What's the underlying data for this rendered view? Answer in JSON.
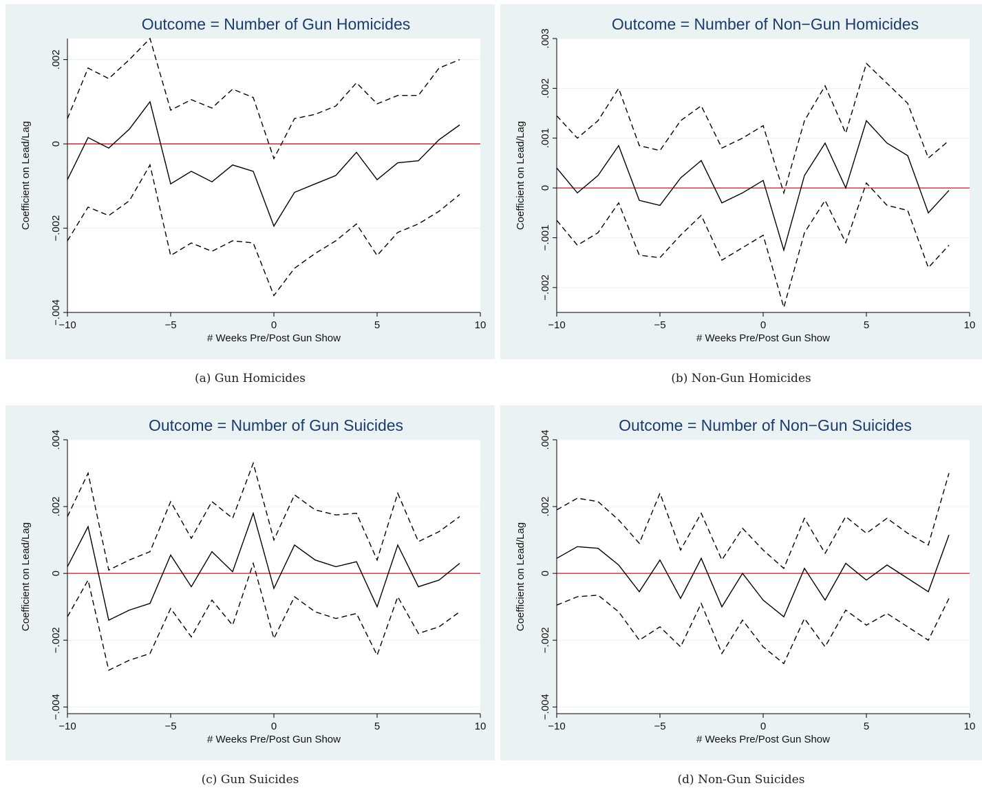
{
  "chart_data": [
    {
      "id": "a",
      "type": "line",
      "title": "Outcome = Number of Gun Homicides",
      "xlabel": "# Weeks Pre/Post Gun Show",
      "ylabel": "Coefficient on Lead/Lag",
      "caption": "(a)  Gun Homicides",
      "xlim": [
        -10,
        10
      ],
      "ylim": [
        -0.004,
        0.0025
      ],
      "xticks": [
        -10,
        -5,
        0,
        5,
        10
      ],
      "xtick_labels": [
        "−10",
        "−5",
        "0",
        "5",
        "10"
      ],
      "yticks": [
        -0.004,
        -0.002,
        0,
        0.002
      ],
      "ytick_labels": [
        "−.004",
        "−.002",
        "0",
        ".002"
      ],
      "grid": true,
      "x": [
        -10,
        -9,
        -8,
        -7,
        -6,
        -5,
        -4,
        -3,
        -2,
        -1,
        0,
        1,
        2,
        3,
        4,
        5,
        6,
        7,
        8,
        9
      ],
      "series": [
        {
          "style": "upper-ci",
          "values": [
            0.0006,
            0.0018,
            0.00155,
            0.002,
            0.0025,
            0.0008,
            0.00105,
            0.00085,
            0.0013,
            0.0011,
            -0.00035,
            0.0006,
            0.0007,
            0.0009,
            0.00145,
            0.00095,
            0.00115,
            0.00115,
            0.0018,
            0.002
          ]
        },
        {
          "style": "estimate",
          "values": [
            -0.00085,
            0.00015,
            -0.0001,
            0.00035,
            0.001,
            -0.00095,
            -0.00065,
            -0.0009,
            -0.0005,
            -0.00065,
            -0.00195,
            -0.00115,
            -0.00095,
            -0.00075,
            -0.0002,
            -0.00085,
            -0.00045,
            -0.0004,
            0.0001,
            0.00045
          ]
        },
        {
          "style": "lower-ci",
          "values": [
            -0.0023,
            -0.0015,
            -0.0017,
            -0.00135,
            -0.0005,
            -0.00265,
            -0.00235,
            -0.00255,
            -0.0023,
            -0.00235,
            -0.0036,
            -0.00295,
            -0.0026,
            -0.0023,
            -0.0019,
            -0.00265,
            -0.0021,
            -0.0019,
            -0.0016,
            -0.0012
          ]
        }
      ],
      "reference_line": 0,
      "colors": {
        "background": "#eaf2f3",
        "title": "#1a3b6b",
        "reference": "#c0142e",
        "series": "#000000",
        "grid": "#ffffff"
      }
    },
    {
      "id": "b",
      "type": "line",
      "title": "Outcome = Number of Non−Gun Homicides",
      "xlabel": "# Weeks Pre/Post Gun Show",
      "ylabel": "Coefficient on Lead/Lag",
      "caption": "(b)  Non-Gun Homicides",
      "xlim": [
        -10,
        10
      ],
      "ylim": [
        -0.0025,
        0.003
      ],
      "xticks": [
        -10,
        -5,
        0,
        5,
        10
      ],
      "xtick_labels": [
        "−10",
        "−5",
        "0",
        "5",
        "10"
      ],
      "yticks": [
        -0.002,
        -0.001,
        0,
        0.001,
        0.002,
        0.003
      ],
      "ytick_labels": [
        "−.002",
        "−.001",
        "0",
        ".001",
        ".002",
        ".003"
      ],
      "grid": true,
      "x": [
        -10,
        -9,
        -8,
        -7,
        -6,
        -5,
        -4,
        -3,
        -2,
        -1,
        0,
        1,
        2,
        3,
        4,
        5,
        6,
        7,
        8,
        9
      ],
      "series": [
        {
          "style": "upper-ci",
          "values": [
            0.00145,
            0.001,
            0.00135,
            0.002,
            0.00085,
            0.00075,
            0.00135,
            0.00165,
            0.0008,
            0.001,
            0.00125,
            -0.0001,
            0.00135,
            0.00205,
            0.0011,
            0.0025,
            0.0021,
            0.0017,
            0.0006,
            0.00095
          ]
        },
        {
          "style": "estimate",
          "values": [
            0.0004,
            -0.0001,
            0.00025,
            0.00085,
            -0.00025,
            -0.00035,
            0.0002,
            0.00055,
            -0.0003,
            -0.0001,
            0.00015,
            -0.00125,
            0.00025,
            0.0009,
            0.0,
            0.00135,
            0.0009,
            0.00065,
            -0.0005,
            -5e-05
          ]
        },
        {
          "style": "lower-ci",
          "values": [
            -0.00065,
            -0.00115,
            -0.0009,
            -0.0003,
            -0.00135,
            -0.0014,
            -0.00095,
            -0.00055,
            -0.00145,
            -0.0012,
            -0.00095,
            -0.0024,
            -0.0009,
            -0.00025,
            -0.0011,
            0.0001,
            -0.00035,
            -0.00045,
            -0.0016,
            -0.00115
          ]
        }
      ],
      "reference_line": 0,
      "colors": {
        "background": "#eaf2f3",
        "title": "#1a3b6b",
        "reference": "#c0142e",
        "series": "#000000",
        "grid": "#ffffff"
      }
    },
    {
      "id": "c",
      "type": "line",
      "title": "Outcome = Number of Gun Suicides",
      "xlabel": "# Weeks Pre/Post Gun Show",
      "ylabel": "Coefficient on Lead/Lag",
      "caption": "(c)  Gun Suicides",
      "xlim": [
        -10,
        10
      ],
      "ylim": [
        -0.0042,
        0.004
      ],
      "xticks": [
        -10,
        -5,
        0,
        5,
        10
      ],
      "xtick_labels": [
        "−10",
        "−5",
        "0",
        "5",
        "10"
      ],
      "yticks": [
        -0.004,
        -0.002,
        0,
        0.002,
        0.004
      ],
      "ytick_labels": [
        "−.004",
        "−.002",
        "0",
        ".002",
        ".004"
      ],
      "grid": true,
      "x": [
        -10,
        -9,
        -8,
        -7,
        -6,
        -5,
        -4,
        -3,
        -2,
        -1,
        0,
        1,
        2,
        3,
        4,
        5,
        6,
        7,
        8,
        9
      ],
      "series": [
        {
          "style": "upper-ci",
          "values": [
            0.0017,
            0.003,
            0.0001,
            0.0004,
            0.00065,
            0.00215,
            0.00105,
            0.00215,
            0.00165,
            0.0033,
            0.001,
            0.00235,
            0.0019,
            0.00175,
            0.0018,
            0.0004,
            0.0024,
            0.00095,
            0.00125,
            0.0017
          ]
        },
        {
          "style": "estimate",
          "values": [
            0.0002,
            0.0014,
            -0.0014,
            -0.0011,
            -0.0009,
            0.00055,
            -0.0004,
            0.00065,
            5e-05,
            0.0018,
            -0.00045,
            0.00085,
            0.0004,
            0.0002,
            0.00035,
            -0.001,
            0.00085,
            -0.0004,
            -0.0002,
            0.0003
          ]
        },
        {
          "style": "lower-ci",
          "values": [
            -0.0013,
            -0.0002,
            -0.0029,
            -0.0026,
            -0.0024,
            -0.00105,
            -0.0019,
            -0.0008,
            -0.00155,
            0.0003,
            -0.00195,
            -0.0007,
            -0.00115,
            -0.00135,
            -0.0012,
            -0.00245,
            -0.0007,
            -0.0018,
            -0.0016,
            -0.00115
          ]
        }
      ],
      "reference_line": 0,
      "colors": {
        "background": "#eaf2f3",
        "title": "#1a3b6b",
        "reference": "#c0142e",
        "series": "#000000",
        "grid": "#ffffff"
      }
    },
    {
      "id": "d",
      "type": "line",
      "title": "Outcome = Number of Non−Gun Suicides",
      "xlabel": "# Weeks Pre/Post Gun Show",
      "ylabel": "Coefficient on Lead/Lag",
      "caption": "(d)  Non-Gun Suicides",
      "xlim": [
        -10,
        10
      ],
      "ylim": [
        -0.0042,
        0.004
      ],
      "xticks": [
        -10,
        -5,
        0,
        5,
        10
      ],
      "xtick_labels": [
        "−10",
        "−5",
        "0",
        "5",
        "10"
      ],
      "yticks": [
        -0.004,
        -0.002,
        0,
        0.002,
        0.004
      ],
      "ytick_labels": [
        "−.004",
        "−.002",
        "0",
        ".002",
        ".004"
      ],
      "grid": true,
      "x": [
        -10,
        -9,
        -8,
        -7,
        -6,
        -5,
        -4,
        -3,
        -2,
        -1,
        0,
        1,
        2,
        3,
        4,
        5,
        6,
        7,
        8,
        9
      ],
      "series": [
        {
          "style": "upper-ci",
          "values": [
            0.0019,
            0.00225,
            0.00215,
            0.0016,
            0.0009,
            0.0024,
            0.0007,
            0.0018,
            0.0004,
            0.00135,
            0.0007,
            0.00015,
            0.00165,
            0.0006,
            0.0017,
            0.0012,
            0.00165,
            0.0012,
            0.00085,
            0.003
          ]
        },
        {
          "style": "estimate",
          "values": [
            0.00045,
            0.0008,
            0.00075,
            0.00025,
            -0.00055,
            0.0004,
            -0.00075,
            0.00045,
            -0.001,
            0.0,
            -0.0008,
            -0.0013,
            0.00015,
            -0.0008,
            0.0003,
            -0.0002,
            0.00025,
            -0.00015,
            -0.00055,
            0.00115
          ]
        },
        {
          "style": "lower-ci",
          "values": [
            -0.00095,
            -0.0007,
            -0.00065,
            -0.00115,
            -0.002,
            -0.0016,
            -0.0022,
            -0.0009,
            -0.0024,
            -0.0014,
            -0.0022,
            -0.0027,
            -0.00135,
            -0.0022,
            -0.0011,
            -0.00155,
            -0.0012,
            -0.0016,
            -0.002,
            -0.00075
          ]
        }
      ],
      "reference_line": 0,
      "colors": {
        "background": "#eaf2f3",
        "title": "#1a3b6b",
        "reference": "#c0142e",
        "series": "#000000",
        "grid": "#ffffff"
      }
    }
  ]
}
